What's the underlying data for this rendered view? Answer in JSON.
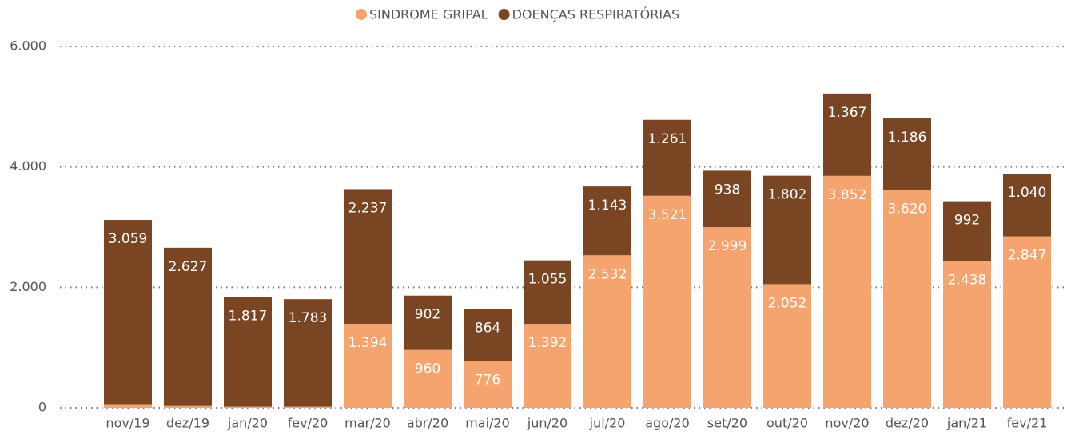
{
  "chart_data": {
    "type": "stacked_bar",
    "categories": [
      "nov/19",
      "dez/19",
      "jan/20",
      "fev/20",
      "mar/20",
      "abr/20",
      "mai/20",
      "jun/20",
      "jul/20",
      "ago/20",
      "set/20",
      "out/20",
      "nov/20",
      "dez/20",
      "jan/21",
      "fev/21"
    ],
    "series": [
      {
        "name": "SINDROME GRIPAL",
        "color": "#f4a46c",
        "values": [
          60,
          30,
          20,
          20,
          1394,
          960,
          776,
          1392,
          2532,
          3521,
          2999,
          2052,
          3852,
          3620,
          2438,
          2847
        ],
        "value_labels": [
          null,
          null,
          null,
          null,
          "1.394",
          "960",
          "776",
          "1.392",
          "2.532",
          "3.521",
          "2.999",
          "2.052",
          "3.852",
          "3.620",
          "2.438",
          "2.847"
        ]
      },
      {
        "name": "DOENÇAS RESPIRATÓRIAS",
        "color": "#7a4522",
        "values": [
          3059,
          2627,
          1817,
          1783,
          2237,
          902,
          864,
          1055,
          1143,
          1261,
          938,
          1802,
          1367,
          1186,
          992,
          1040
        ],
        "value_labels": [
          "3.059",
          "2.627",
          "1.817",
          "1.783",
          "2.237",
          "902",
          "864",
          "1.055",
          "1.143",
          "1.261",
          "938",
          "1.802",
          "1.367",
          "1.186",
          "992",
          "1.040"
        ]
      }
    ],
    "ylim": [
      0,
      6000
    ],
    "yticks": [
      0,
      {
        "value": 2000,
        "label": "2.000"
      },
      {
        "value": 4000,
        "label": "4.000"
      },
      {
        "value": 6000,
        "label": "6.000"
      }
    ],
    "grid": true,
    "legend": "top"
  }
}
